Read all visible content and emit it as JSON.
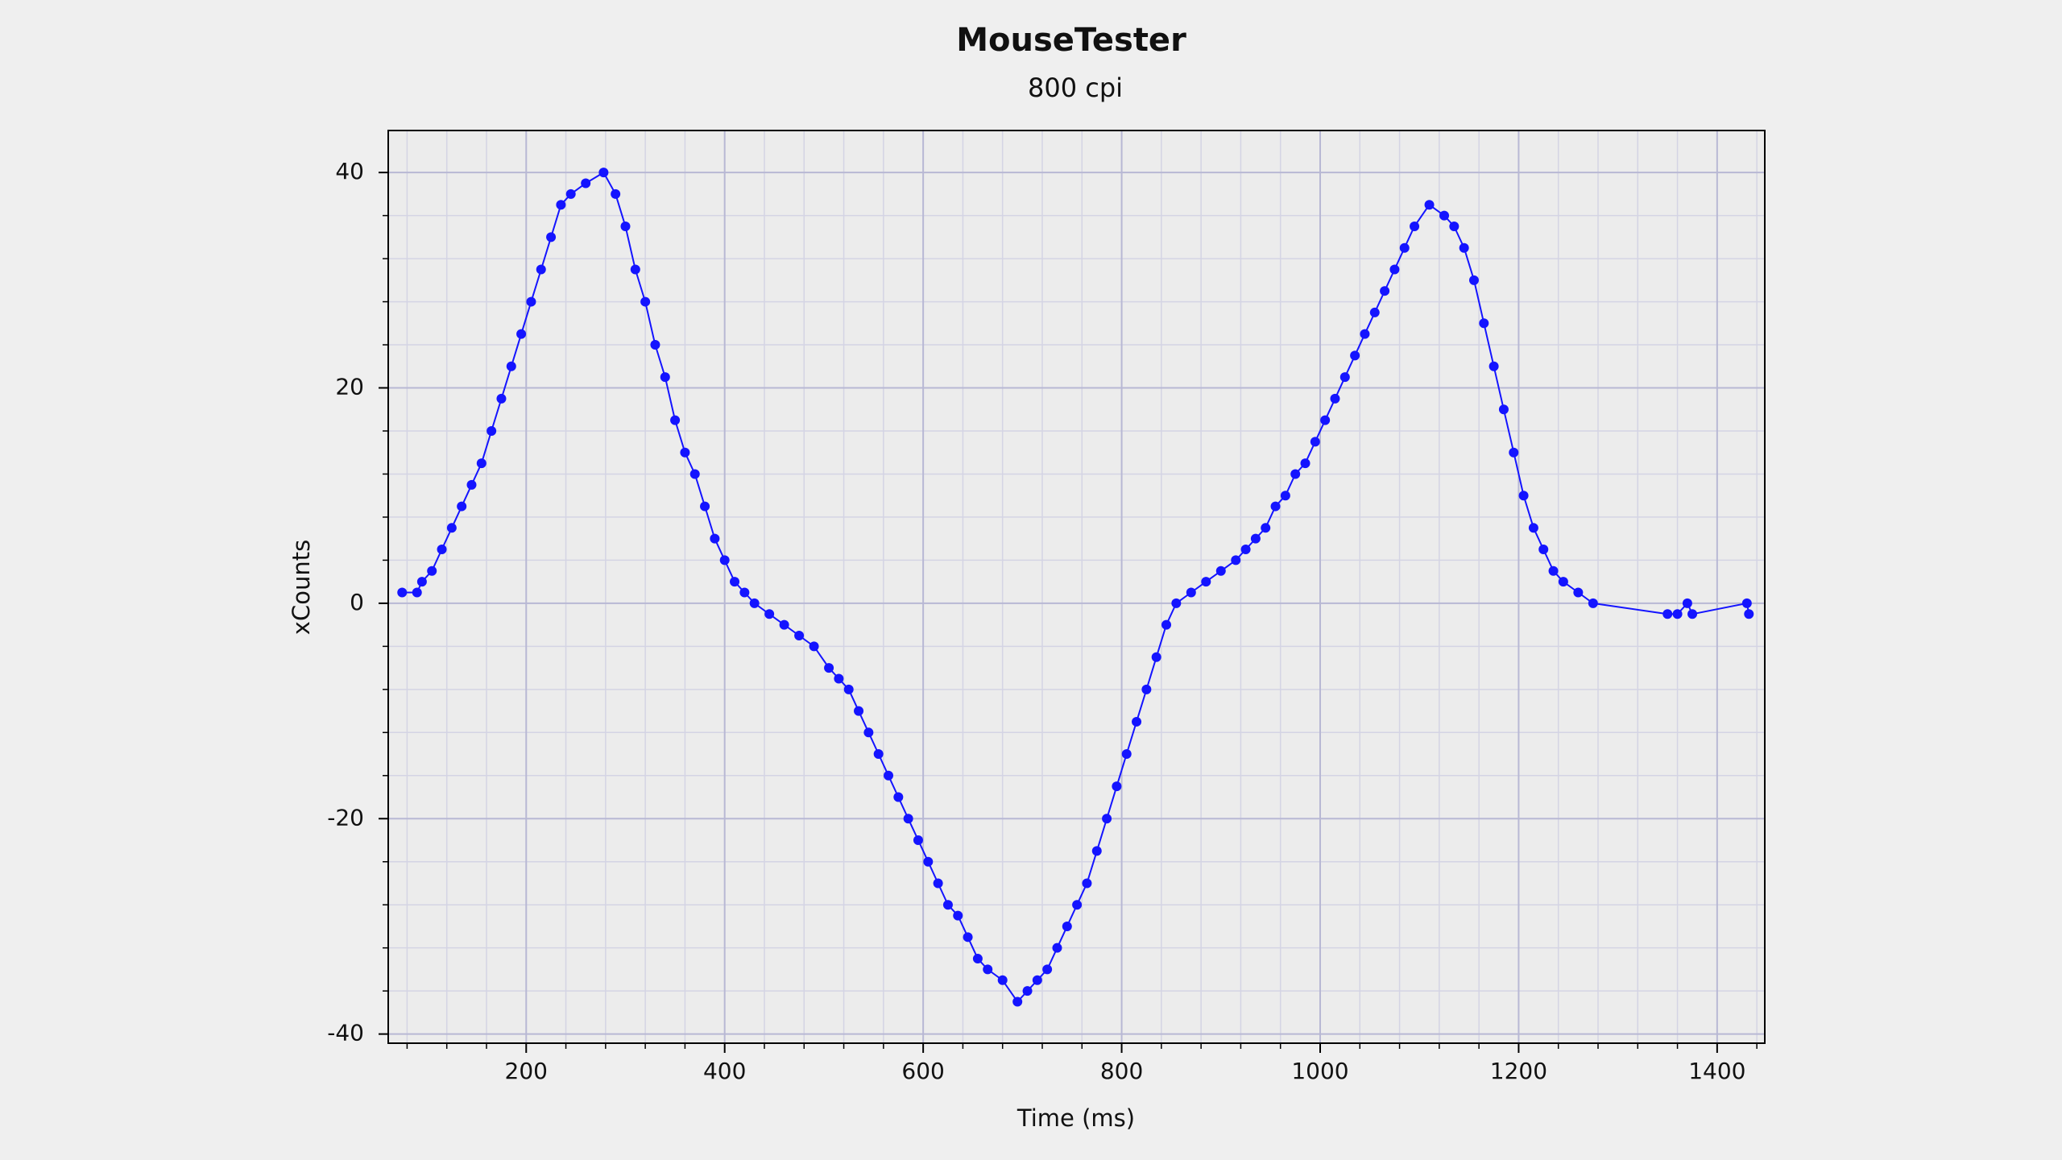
{
  "chart_data": {
    "type": "scatter",
    "title": "MouseTester",
    "subtitle": "800 cpi",
    "x_label": "Time (ms)",
    "y_label": "xCounts",
    "xlim": [
      61,
      1448
    ],
    "ylim": [
      -40.85,
      43.9
    ],
    "xticks": [
      200,
      400,
      600,
      800,
      1000,
      1200,
      1400
    ],
    "yticks": [
      -40,
      -20,
      0,
      20,
      40
    ],
    "x_minor_ticks": [
      80,
      120,
      160,
      240,
      280,
      320,
      360,
      440,
      480,
      520,
      560,
      640,
      680,
      720,
      760,
      840,
      880,
      920,
      960,
      1040,
      1080,
      1120,
      1160,
      1240,
      1280,
      1320,
      1360,
      1440
    ],
    "y_minor_ticks": [
      -36,
      -32,
      -28,
      -24,
      -16,
      -12,
      -8,
      -4,
      4,
      8,
      12,
      16,
      24,
      28,
      32,
      36
    ],
    "grid": true,
    "series": [
      {
        "color": "#1414ff",
        "x": [
          75,
          90,
          95,
          105,
          115,
          125,
          135,
          145,
          155,
          165,
          175,
          185,
          195,
          205,
          215,
          225,
          235,
          245,
          260,
          278,
          290,
          300,
          310,
          320,
          330,
          340,
          350,
          360,
          370,
          380,
          390,
          400,
          410,
          420,
          430,
          445,
          460,
          475,
          490,
          505,
          515,
          525,
          535,
          545,
          555,
          565,
          575,
          585,
          595,
          605,
          615,
          625,
          635,
          645,
          655,
          665,
          680,
          695,
          705,
          715,
          725,
          735,
          745,
          755,
          765,
          775,
          785,
          795,
          805,
          815,
          825,
          835,
          845,
          855,
          870,
          885,
          900,
          915,
          925,
          935,
          945,
          955,
          965,
          975,
          985,
          995,
          1005,
          1015,
          1025,
          1035,
          1045,
          1055,
          1065,
          1075,
          1085,
          1095,
          1110,
          1125,
          1135,
          1145,
          1155,
          1165,
          1175,
          1185,
          1195,
          1205,
          1215,
          1225,
          1235,
          1245,
          1260,
          1275,
          1350,
          1360,
          1370,
          1375,
          1430,
          1432
        ],
        "values": [
          1,
          1,
          2,
          3,
          5,
          7,
          9,
          11,
          13,
          16,
          19,
          22,
          25,
          28,
          31,
          34,
          37,
          38,
          39,
          40,
          38,
          35,
          31,
          28,
          24,
          21,
          17,
          14,
          12,
          9,
          6,
          4,
          2,
          1,
          0,
          -1,
          -2,
          -3,
          -4,
          -6,
          -7,
          -8,
          -10,
          -12,
          -14,
          -16,
          -18,
          -20,
          -22,
          -24,
          -26,
          -28,
          -29,
          -31,
          -33,
          -34,
          -35,
          -37,
          -36,
          -35,
          -34,
          -32,
          -30,
          -28,
          -26,
          -23,
          -20,
          -17,
          -14,
          -11,
          -8,
          -5,
          -2,
          0,
          1,
          2,
          3,
          4,
          5,
          6,
          7,
          9,
          10,
          12,
          13,
          15,
          17,
          19,
          21,
          23,
          25,
          27,
          29,
          31,
          33,
          35,
          37,
          36,
          35,
          33,
          30,
          26,
          22,
          18,
          14,
          10,
          7,
          5,
          3,
          2,
          1,
          0,
          -1,
          -1,
          0,
          -1,
          0,
          -1
        ]
      }
    ]
  }
}
